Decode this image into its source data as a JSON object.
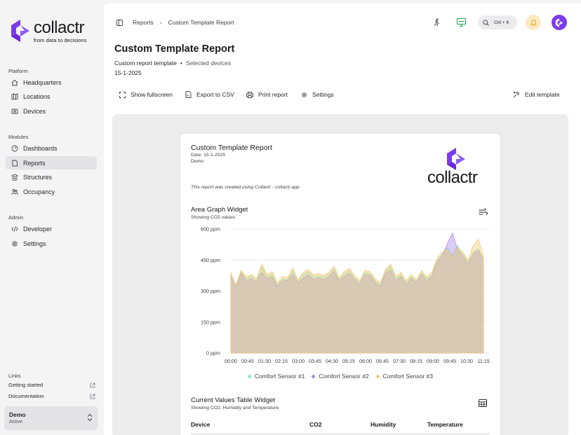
{
  "brand": {
    "name": "collactr",
    "tagline": "from data to decisions",
    "color": "#7c3aed"
  },
  "sidebar": {
    "sections": [
      {
        "title": "Platform",
        "items": [
          {
            "label": "Headquarters",
            "icon": "home-icon"
          },
          {
            "label": "Locations",
            "icon": "map-icon"
          },
          {
            "label": "Devices",
            "icon": "device-icon"
          }
        ]
      },
      {
        "title": "Modules",
        "items": [
          {
            "label": "Dashboards",
            "icon": "dashboard-icon"
          },
          {
            "label": "Reports",
            "icon": "report-icon",
            "active": true
          },
          {
            "label": "Structures",
            "icon": "structure-icon"
          },
          {
            "label": "Occupancy",
            "icon": "people-icon"
          }
        ]
      },
      {
        "title": "Admin",
        "items": [
          {
            "label": "Developer",
            "icon": "code-icon"
          },
          {
            "label": "Settings",
            "icon": "gear-icon"
          }
        ]
      }
    ],
    "links_title": "Links",
    "links": [
      {
        "label": "Getting started",
        "icon": "external-link-icon"
      },
      {
        "label": "Documentation",
        "icon": "external-link-icon"
      }
    ],
    "org": {
      "name": "Demo",
      "status": "Active"
    }
  },
  "topbar": {
    "breadcrumbs": [
      "Reports",
      "Custom Template Report"
    ],
    "search_shortcut": "Ctrl + K"
  },
  "page": {
    "title": "Custom Template Report",
    "template": "Custom report template",
    "scope": "Selected devices",
    "date": "15-1-2025",
    "actions": {
      "fullscreen": "Show fullscreen",
      "export": "Export to CSV",
      "print": "Print report",
      "settings": "Settings",
      "edit": "Edit template"
    }
  },
  "report": {
    "title": "Custom Template Report",
    "date_line": "Date: 15-1-2025",
    "org": "Demo",
    "note": "This report was created using Collactr - collactr.app",
    "logo_text": "collactr",
    "area_widget": {
      "title": "Area Graph Widget",
      "subtitle": "Showing CO2 values"
    },
    "table_widget": {
      "title": "Current Values Table Widget",
      "subtitle": "Showing CO2, Humidity and Temperature",
      "columns": [
        "Device",
        "CO2",
        "Humidity",
        "Temperature"
      ]
    }
  },
  "chart_data": {
    "type": "area",
    "x_ticks": [
      "00:00",
      "00:45",
      "01:30",
      "02:15",
      "03:00",
      "03:45",
      "04:30",
      "05:15",
      "06:00",
      "06:45",
      "07:30",
      "08:15",
      "09:00",
      "09:45",
      "10:30",
      "11:15"
    ],
    "y_ticks": [
      "0 ppm",
      "150 ppm",
      "300 ppm",
      "450 ppm",
      "600 ppm"
    ],
    "ylim": [
      0,
      600
    ],
    "series": [
      {
        "name": "Comfort Sensor #1",
        "color": "#86efc4",
        "values": [
          380,
          310,
          395,
          360,
          375,
          350,
          420,
          370,
          385,
          330,
          360,
          355,
          400,
          345,
          380,
          395,
          370,
          375,
          365,
          380,
          410,
          355,
          385,
          400,
          365,
          340,
          390,
          385,
          350,
          330,
          395,
          420,
          360,
          380,
          340,
          370,
          345,
          390,
          360,
          380,
          450,
          480,
          510,
          470,
          520,
          480,
          440,
          490,
          505,
          455
        ]
      },
      {
        "name": "Comfort Sensor #2",
        "color": "#b08ee8",
        "values": [
          370,
          320,
          385,
          350,
          360,
          345,
          390,
          360,
          370,
          320,
          350,
          350,
          380,
          340,
          360,
          380,
          355,
          365,
          355,
          370,
          395,
          350,
          370,
          385,
          355,
          330,
          380,
          375,
          340,
          320,
          385,
          400,
          350,
          370,
          330,
          360,
          340,
          380,
          350,
          370,
          440,
          470,
          530,
          580,
          500,
          470,
          430,
          480,
          495,
          450
        ]
      },
      {
        "name": "Comfort Sensor #3",
        "color": "#f8c97a",
        "values": [
          390,
          330,
          400,
          370,
          380,
          360,
          430,
          380,
          395,
          340,
          370,
          365,
          410,
          355,
          390,
          405,
          380,
          385,
          375,
          390,
          420,
          365,
          395,
          410,
          375,
          350,
          400,
          395,
          360,
          340,
          405,
          430,
          370,
          390,
          350,
          380,
          355,
          400,
          370,
          390,
          460,
          490,
          500,
          460,
          510,
          490,
          450,
          520,
          550,
          470
        ]
      }
    ],
    "legend": "bottom",
    "grid": true
  }
}
